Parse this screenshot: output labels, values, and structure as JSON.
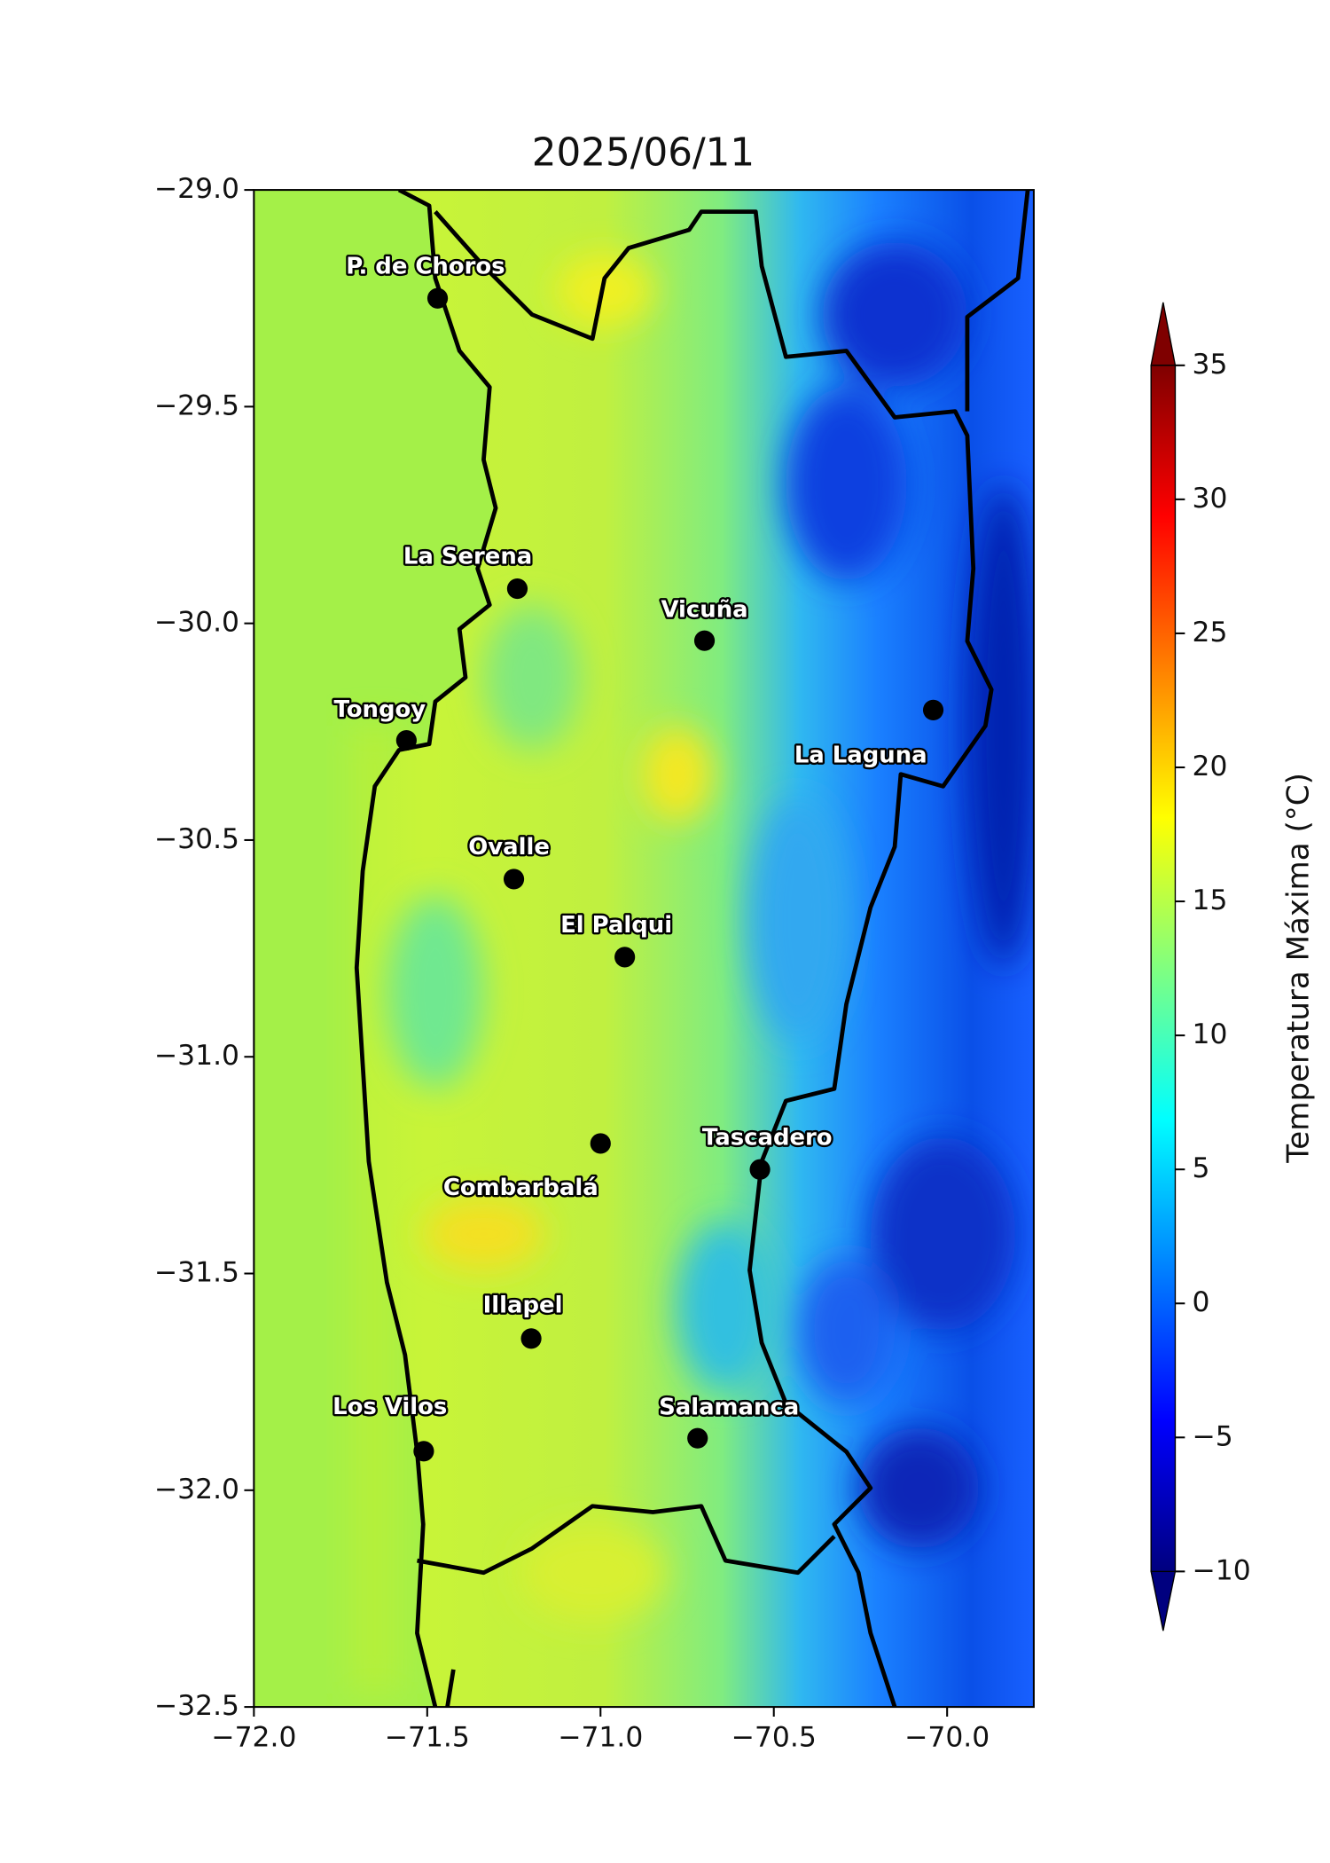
{
  "chart_data": {
    "type": "map",
    "title": "2025/06/11",
    "xlim": [
      -72,
      -69.75
    ],
    "ylim": [
      -32.5,
      -29
    ],
    "xticks": [
      {
        "value": -72,
        "label": "−72.0"
      },
      {
        "value": -71.5,
        "label": "−71.5"
      },
      {
        "value": -71,
        "label": "−71.0"
      },
      {
        "value": -70.5,
        "label": "−70.5"
      },
      {
        "value": -70,
        "label": "−70.0"
      }
    ],
    "yticks": [
      {
        "value": -29,
        "label": "−29.0"
      },
      {
        "value": -29.5,
        "label": "−29.5"
      },
      {
        "value": -30,
        "label": "−30.0"
      },
      {
        "value": -30.5,
        "label": "−30.5"
      },
      {
        "value": -31,
        "label": "−31.0"
      },
      {
        "value": -31.5,
        "label": "−31.5"
      },
      {
        "value": -32,
        "label": "−32.0"
      },
      {
        "value": -32.5,
        "label": "−32.5"
      }
    ],
    "points": [
      {
        "name": "P. de Choros",
        "lon": -71.47,
        "lat": -29.25
      },
      {
        "name": "La Serena",
        "lon": -71.24,
        "lat": -29.92
      },
      {
        "name": "Vicuña",
        "lon": -70.7,
        "lat": -30.04
      },
      {
        "name": "Tongoy",
        "lon": -71.56,
        "lat": -30.27
      },
      {
        "name": "La Laguna",
        "lon": -70.04,
        "lat": -30.2
      },
      {
        "name": "Ovalle",
        "lon": -71.25,
        "lat": -30.59
      },
      {
        "name": "El Palqui",
        "lon": -70.93,
        "lat": -30.77
      },
      {
        "name": "Combarbalá",
        "lon": -71.0,
        "lat": -31.2
      },
      {
        "name": "Tascadero",
        "lon": -70.54,
        "lat": -31.26
      },
      {
        "name": "Illapel",
        "lon": -71.2,
        "lat": -31.65
      },
      {
        "name": "Los Vilos",
        "lon": -71.51,
        "lat": -31.91
      },
      {
        "name": "Salamanca",
        "lon": -70.72,
        "lat": -31.88
      }
    ],
    "colorbar": {
      "label": "Temperatura Máxima (°C)",
      "lim": [
        -10,
        35
      ],
      "colormap": "jet",
      "ticks": [
        {
          "value": -10,
          "label": "−10"
        },
        {
          "value": -5,
          "label": "−5"
        },
        0,
        5,
        10,
        15,
        20,
        25,
        30,
        35
      ]
    }
  }
}
